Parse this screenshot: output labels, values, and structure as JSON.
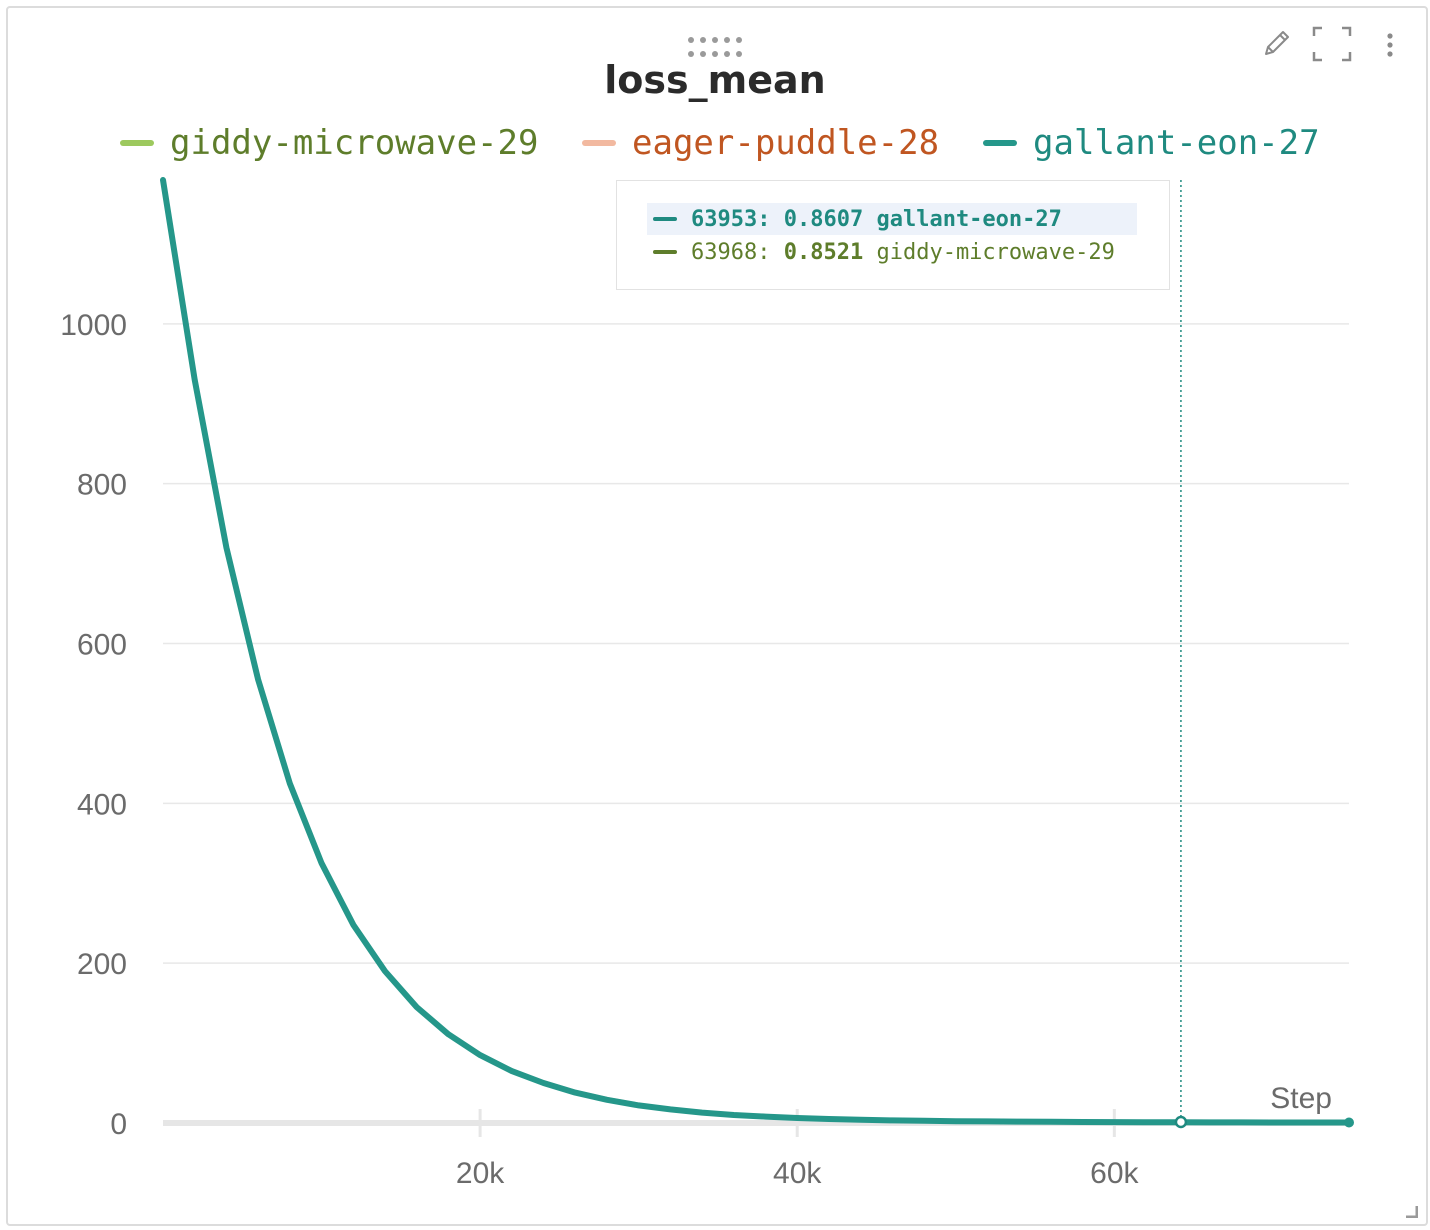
{
  "panel": {
    "title": "loss_mean",
    "toolbar": {
      "edit_icon": "pencil-icon",
      "fullscreen_icon": "expand-icon",
      "menu_icon": "kebab-menu-icon",
      "drag_icon": "drag-handle-icon"
    }
  },
  "legend": [
    {
      "name": "giddy-microwave-29",
      "swatch": "#9dc95e",
      "text_color": "#5e7d2b"
    },
    {
      "name": "eager-puddle-28",
      "swatch": "#f2b9a0",
      "text_color": "#c05621"
    },
    {
      "name": "gallant-eon-27",
      "swatch": "#25978a",
      "text_color": "#1f8a80"
    }
  ],
  "tooltip": {
    "rows": [
      {
        "step": "63953",
        "value": "0.8607",
        "run": "gallant-eon-27",
        "color": "#1f8a80",
        "highlighted": true
      },
      {
        "step": "63968",
        "value": "0.8521",
        "run": "giddy-microwave-29",
        "color": "#5e7d2b",
        "highlighted": false
      }
    ]
  },
  "chart_data": {
    "type": "line",
    "title": "loss_mean",
    "xlabel": "Step",
    "ylabel": "",
    "xlim": [
      0,
      74800
    ],
    "ylim": [
      0,
      1180
    ],
    "x_ticks": [
      20000,
      40000,
      60000
    ],
    "x_tick_labels": [
      "20k",
      "40k",
      "60k"
    ],
    "y_ticks": [
      0,
      200,
      400,
      600,
      800,
      1000
    ],
    "y_tick_labels": [
      "0",
      "200",
      "400",
      "600",
      "800",
      "1000"
    ],
    "grid": true,
    "legend_position": "top",
    "hover_step": 64200,
    "series": [
      {
        "name": "giddy-microwave-29",
        "color": "#9dc95e",
        "x": [
          0,
          2000,
          4000,
          6000,
          8000,
          10000,
          12000,
          14000,
          16000,
          18000,
          20000,
          22000,
          24000,
          26000,
          28000,
          30000,
          32000,
          34000,
          36000,
          38000,
          40000,
          42000,
          44000,
          46000,
          48000,
          50000,
          52000,
          54000,
          56000,
          58000,
          60000,
          62000,
          64000,
          66000,
          68000,
          70000,
          72000,
          74800
        ],
        "y": [
          1180,
          930,
          720,
          555,
          425,
          325,
          248,
          190,
          145,
          111,
          85,
          65,
          50,
          38,
          29,
          22,
          17,
          13,
          10,
          8,
          6.3,
          5.0,
          4.0,
          3.3,
          2.7,
          2.3,
          2.0,
          1.7,
          1.5,
          1.3,
          1.15,
          1.0,
          0.86,
          0.78,
          0.72,
          0.67,
          0.63,
          0.6
        ]
      },
      {
        "name": "eager-puddle-28",
        "color": "#f2b9a0",
        "x": [
          0,
          2000,
          4000,
          6000,
          8000,
          10000,
          12000,
          14000,
          16000,
          18000,
          20000,
          22000,
          24000,
          26000,
          28000,
          30000
        ],
        "y": [
          1180,
          930,
          722,
          556,
          426,
          326,
          249,
          190,
          146,
          112,
          86,
          66,
          51,
          39,
          30,
          23
        ]
      },
      {
        "name": "gallant-eon-27",
        "color": "#25978a",
        "x": [
          0,
          2000,
          4000,
          6000,
          8000,
          10000,
          12000,
          14000,
          16000,
          18000,
          20000,
          22000,
          24000,
          26000,
          28000,
          30000,
          32000,
          34000,
          36000,
          38000,
          40000,
          42000,
          44000,
          46000,
          48000,
          50000,
          52000,
          54000,
          56000,
          58000,
          60000,
          62000,
          64000,
          66000,
          68000,
          70000,
          72000,
          74800
        ],
        "y": [
          1180,
          930,
          720,
          555,
          425,
          325,
          248,
          190,
          145,
          111,
          85,
          65,
          50,
          38,
          29,
          22,
          17,
          13,
          10,
          8,
          6.3,
          5.0,
          4.0,
          3.3,
          2.7,
          2.3,
          2.0,
          1.7,
          1.5,
          1.3,
          1.15,
          1.0,
          0.86,
          0.78,
          0.72,
          0.67,
          0.63,
          0.6
        ]
      }
    ]
  }
}
